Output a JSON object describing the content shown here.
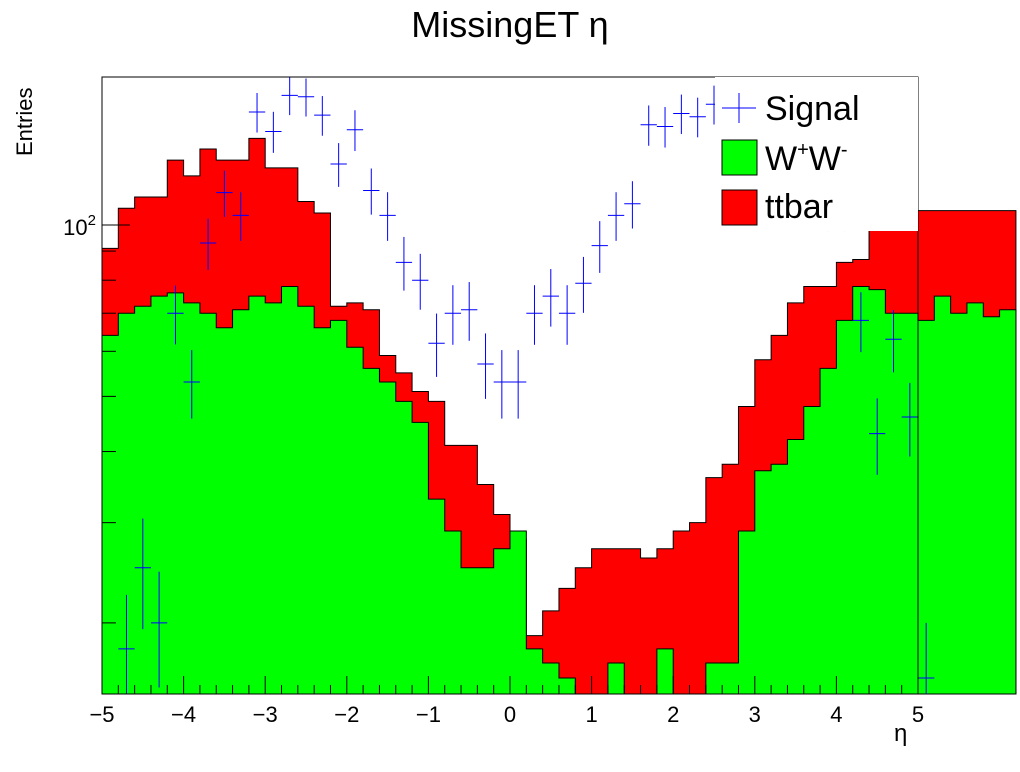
{
  "chart_data": {
    "type": "histogram",
    "title": "MissingET η",
    "xlabel": "η",
    "ylabel": "Entries",
    "xlim": [
      -5,
      5
    ],
    "ylim": [
      15,
      182
    ],
    "yscale": "log",
    "xticks": [
      "−5",
      "−4",
      "−3",
      "−2",
      "−1",
      "0",
      "1",
      "2",
      "3",
      "4",
      "5"
    ],
    "ytick_label": "10",
    "ytick_label_exp": "2",
    "legend": {
      "position": "top-right",
      "entries": [
        {
          "label": "Signal",
          "style": "errorbar"
        },
        {
          "label": "W",
          "sup1": "+",
          "label2": "W",
          "sup2": "-",
          "style": "fill"
        },
        {
          "label": "ttbar",
          "style": "fill"
        }
      ]
    },
    "bin_edges_start": -5,
    "bin_width": 0.2,
    "series": [
      {
        "name": "W+W-",
        "color": "#00ff00",
        "stacked": true,
        "values": [
          64,
          70,
          72,
          75,
          76,
          73,
          70,
          66,
          71,
          75,
          73,
          78,
          72,
          66,
          68,
          61,
          56,
          53,
          49,
          45,
          33,
          29,
          25,
          25,
          27,
          29,
          18,
          17,
          16,
          14,
          14,
          17,
          15,
          15,
          18,
          15,
          15,
          17,
          17,
          29,
          37,
          38,
          42,
          48,
          56,
          68,
          78,
          77,
          70,
          70,
          68,
          75,
          70,
          73,
          69,
          71
        ]
      },
      {
        "name": "ttbar",
        "color": "#ff0000",
        "stacked": true,
        "values": [
          91,
          107,
          112,
          112,
          130,
          122,
          136,
          130,
          130,
          142,
          126,
          126,
          110,
          105,
          72,
          73,
          71,
          59,
          55,
          51,
          49,
          41,
          41,
          35,
          31,
          28,
          19,
          21,
          23,
          25,
          27,
          27,
          27,
          26,
          27,
          29,
          30,
          36,
          38,
          48,
          58,
          64,
          73,
          78,
          78,
          86,
          87,
          98,
          106,
          106,
          106,
          106,
          106,
          106,
          106,
          106
        ]
      },
      {
        "name": "Signal",
        "color": "#0000ff",
        "style": "errorbar",
        "values": [
          18,
          25,
          20,
          70,
          53,
          93,
          114,
          104,
          158,
          146,
          169,
          168,
          156,
          128,
          147,
          115,
          104,
          86,
          80,
          62,
          70,
          71,
          57,
          53,
          53,
          70,
          75,
          70,
          79,
          92,
          104,
          109,
          150,
          149,
          157,
          155,
          163,
          169,
          158,
          158,
          155,
          135,
          116,
          108,
          108,
          68,
          43,
          63,
          46,
          16
        ],
        "errors": [
          4.4,
          5.5,
          4.6,
          8.3,
          7.3,
          9.6,
          10.6,
          10.2,
          12.6,
          12.1,
          13.0,
          12.9,
          12.5,
          11.3,
          12.1,
          10.7,
          10.2,
          9.3,
          9.0,
          7.9,
          8.4,
          8.4,
          7.5,
          7.3,
          7.3,
          8.4,
          8.7,
          8.4,
          8.9,
          9.6,
          10.2,
          10.4,
          12.2,
          12.2,
          12.5,
          12.4,
          12.8,
          13.0,
          12.6,
          12.6,
          12.5,
          11.6,
          10.8,
          10.4,
          10.4,
          8.2,
          6.6,
          7.9,
          6.8,
          4.0
        ],
        "x_offset_bins": 1
      }
    ]
  }
}
